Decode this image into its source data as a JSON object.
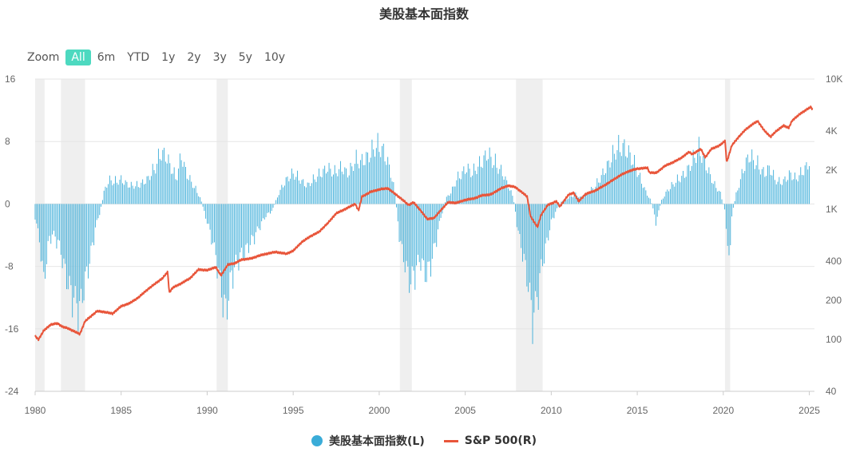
{
  "title": "美股基本面指数",
  "range_selector": {
    "label": "Zoom",
    "buttons": [
      "All",
      "6m",
      "YTD",
      "1y",
      "2y",
      "3y",
      "5y",
      "10y"
    ],
    "active": "All"
  },
  "colors": {
    "bars": "#3aacd8",
    "line": "#e8553a",
    "recession": "#efefef",
    "grid": "#e6e6e6",
    "active_button": "#4dd9c0"
  },
  "chart_data": {
    "type": "bar",
    "title": "美股基本面指数",
    "x_axis": {
      "type": "datetime",
      "range": [
        1980.0,
        2025.3
      ],
      "tick_labels": [
        "1980",
        "1985",
        "1990",
        "1995",
        "2000",
        "2005",
        "2010",
        "2015",
        "2020",
        "2025"
      ]
    },
    "y_left": {
      "range": [
        -24,
        16
      ],
      "tick_labels": [
        "-24",
        "-16",
        "-8",
        "0",
        "8",
        "16"
      ],
      "grid": true
    },
    "y_right": {
      "scale": "log",
      "range": [
        40,
        10000
      ],
      "tick_values": [
        40,
        100,
        200,
        400,
        1000,
        2000,
        4000,
        10000
      ],
      "tick_labels": [
        "40",
        "100",
        "200",
        "400",
        "1K",
        "2K",
        "4K",
        "10K"
      ]
    },
    "recessions": [
      [
        1980.0,
        1980.55
      ],
      [
        1981.5,
        1982.9
      ],
      [
        1990.55,
        1991.2
      ],
      [
        2001.2,
        2001.9
      ],
      [
        2007.95,
        2009.5
      ],
      [
        2020.1,
        2020.4
      ]
    ],
    "series": [
      {
        "name": "美股基本面指数(L)",
        "type": "bar",
        "points": [
          [
            1980.0,
            -2
          ],
          [
            1980.3,
            -7
          ],
          [
            1980.5,
            -13
          ],
          [
            1980.8,
            -6
          ],
          [
            1981.0,
            -5
          ],
          [
            1981.3,
            -6
          ],
          [
            1981.5,
            -8
          ],
          [
            1981.8,
            -12
          ],
          [
            1982.0,
            -14
          ],
          [
            1982.3,
            -16
          ],
          [
            1982.6,
            -17.5
          ],
          [
            1982.9,
            -13
          ],
          [
            1983.2,
            -9
          ],
          [
            1983.5,
            -4
          ],
          [
            1983.8,
            -1
          ],
          [
            1984.0,
            2
          ],
          [
            1984.3,
            4
          ],
          [
            1984.6,
            3.5
          ],
          [
            1985.0,
            4
          ],
          [
            1985.5,
            3
          ],
          [
            1986.0,
            3
          ],
          [
            1986.5,
            4
          ],
          [
            1987.0,
            6
          ],
          [
            1987.3,
            8.5
          ],
          [
            1987.6,
            8
          ],
          [
            1987.9,
            6
          ],
          [
            1988.2,
            4
          ],
          [
            1988.5,
            8
          ],
          [
            1988.8,
            5
          ],
          [
            1989.2,
            3
          ],
          [
            1989.6,
            1
          ],
          [
            1990.0,
            -3
          ],
          [
            1990.3,
            -6
          ],
          [
            1990.6,
            -10
          ],
          [
            1990.9,
            -16
          ],
          [
            1991.1,
            -18
          ],
          [
            1991.4,
            -12
          ],
          [
            1991.8,
            -9
          ],
          [
            1992.2,
            -8
          ],
          [
            1992.6,
            -6
          ],
          [
            1993.0,
            -4
          ],
          [
            1993.4,
            -2
          ],
          [
            1993.8,
            -1
          ],
          [
            1994.2,
            2
          ],
          [
            1994.6,
            4
          ],
          [
            1995.0,
            5
          ],
          [
            1995.4,
            4
          ],
          [
            1995.8,
            3
          ],
          [
            1996.2,
            4
          ],
          [
            1996.6,
            5
          ],
          [
            1997.0,
            6
          ],
          [
            1997.4,
            5
          ],
          [
            1997.8,
            6
          ],
          [
            1998.2,
            5
          ],
          [
            1998.6,
            7
          ],
          [
            1999.0,
            7
          ],
          [
            1999.4,
            8
          ],
          [
            1999.8,
            9.5
          ],
          [
            2000.2,
            9
          ],
          [
            2000.6,
            6
          ],
          [
            2000.9,
            2
          ],
          [
            2001.2,
            -6
          ],
          [
            2001.5,
            -10
          ],
          [
            2001.8,
            -13
          ],
          [
            2002.1,
            -11
          ],
          [
            2002.4,
            -9
          ],
          [
            2002.7,
            -12
          ],
          [
            2003.0,
            -10
          ],
          [
            2003.3,
            -6
          ],
          [
            2003.6,
            -2
          ],
          [
            2003.9,
            1
          ],
          [
            2004.2,
            2
          ],
          [
            2004.5,
            4
          ],
          [
            2004.8,
            5
          ],
          [
            2005.1,
            6
          ],
          [
            2005.4,
            5
          ],
          [
            2005.7,
            6
          ],
          [
            2006.0,
            7
          ],
          [
            2006.3,
            8.5
          ],
          [
            2006.6,
            7
          ],
          [
            2006.9,
            6
          ],
          [
            2007.2,
            5
          ],
          [
            2007.5,
            3
          ],
          [
            2007.8,
            1
          ],
          [
            2008.1,
            -5
          ],
          [
            2008.4,
            -9
          ],
          [
            2008.7,
            -14
          ],
          [
            2008.9,
            -19
          ],
          [
            2009.1,
            -17
          ],
          [
            2009.4,
            -11
          ],
          [
            2009.7,
            -7
          ],
          [
            2010.0,
            -3
          ],
          [
            2010.3,
            -1
          ],
          [
            2010.6,
            0.5
          ],
          [
            2011.0,
            1
          ],
          [
            2011.4,
            1.5
          ],
          [
            2011.8,
            1
          ],
          [
            2012.2,
            2
          ],
          [
            2012.6,
            3
          ],
          [
            2013.0,
            5
          ],
          [
            2013.4,
            7
          ],
          [
            2013.8,
            9
          ],
          [
            2014.2,
            9.5
          ],
          [
            2014.6,
            8
          ],
          [
            2014.9,
            6
          ],
          [
            2015.2,
            4
          ],
          [
            2015.5,
            2
          ],
          [
            2015.8,
            0.5
          ],
          [
            2016.1,
            -3
          ],
          [
            2016.4,
            0.5
          ],
          [
            2016.7,
            2
          ],
          [
            2017.0,
            3
          ],
          [
            2017.4,
            4
          ],
          [
            2017.8,
            5
          ],
          [
            2018.2,
            7
          ],
          [
            2018.6,
            9
          ],
          [
            2018.9,
            7
          ],
          [
            2019.2,
            5
          ],
          [
            2019.5,
            3
          ],
          [
            2019.8,
            2
          ],
          [
            2020.1,
            -1
          ],
          [
            2020.2,
            -5
          ],
          [
            2020.3,
            -11
          ],
          [
            2020.5,
            -2
          ],
          [
            2020.7,
            1
          ],
          [
            2020.9,
            3
          ],
          [
            2021.2,
            6
          ],
          [
            2021.5,
            8
          ],
          [
            2021.8,
            7
          ],
          [
            2022.1,
            6
          ],
          [
            2022.4,
            5
          ],
          [
            2022.7,
            6
          ],
          [
            2023.0,
            4
          ],
          [
            2023.3,
            3.5
          ],
          [
            2023.6,
            4
          ],
          [
            2023.9,
            5
          ],
          [
            2024.2,
            4
          ],
          [
            2024.5,
            5
          ],
          [
            2024.8,
            6
          ],
          [
            2025.0,
            7
          ]
        ]
      },
      {
        "name": "S&P 500(R)",
        "type": "line",
        "points": [
          [
            1980.0,
            106
          ],
          [
            1980.2,
            100
          ],
          [
            1980.5,
            117
          ],
          [
            1980.9,
            130
          ],
          [
            1981.3,
            133
          ],
          [
            1981.6,
            125
          ],
          [
            1981.9,
            122
          ],
          [
            1982.3,
            115
          ],
          [
            1982.6,
            110
          ],
          [
            1982.9,
            138
          ],
          [
            1983.3,
            153
          ],
          [
            1983.6,
            165
          ],
          [
            1984.0,
            163
          ],
          [
            1984.5,
            158
          ],
          [
            1985.0,
            180
          ],
          [
            1985.5,
            190
          ],
          [
            1986.0,
            210
          ],
          [
            1986.5,
            240
          ],
          [
            1987.0,
            270
          ],
          [
            1987.4,
            295
          ],
          [
            1987.7,
            330
          ],
          [
            1987.8,
            230
          ],
          [
            1988.0,
            250
          ],
          [
            1988.5,
            270
          ],
          [
            1989.0,
            295
          ],
          [
            1989.5,
            345
          ],
          [
            1990.0,
            340
          ],
          [
            1990.5,
            360
          ],
          [
            1990.8,
            310
          ],
          [
            1991.2,
            375
          ],
          [
            1991.6,
            385
          ],
          [
            1992.0,
            410
          ],
          [
            1992.6,
            420
          ],
          [
            1993.0,
            440
          ],
          [
            1993.6,
            460
          ],
          [
            1994.0,
            470
          ],
          [
            1994.6,
            455
          ],
          [
            1995.0,
            480
          ],
          [
            1995.5,
            560
          ],
          [
            1996.0,
            620
          ],
          [
            1996.5,
            670
          ],
          [
            1997.0,
            780
          ],
          [
            1997.5,
            930
          ],
          [
            1998.0,
            1000
          ],
          [
            1998.6,
            1100
          ],
          [
            1998.8,
            980
          ],
          [
            1999.0,
            1250
          ],
          [
            1999.5,
            1360
          ],
          [
            2000.0,
            1420
          ],
          [
            2000.5,
            1450
          ],
          [
            2000.9,
            1320
          ],
          [
            2001.3,
            1200
          ],
          [
            2001.7,
            1080
          ],
          [
            2002.0,
            1130
          ],
          [
            2002.4,
            980
          ],
          [
            2002.8,
            840
          ],
          [
            2003.2,
            860
          ],
          [
            2003.6,
            990
          ],
          [
            2004.0,
            1130
          ],
          [
            2004.5,
            1120
          ],
          [
            2005.0,
            1180
          ],
          [
            2005.5,
            1210
          ],
          [
            2006.0,
            1280
          ],
          [
            2006.5,
            1300
          ],
          [
            2007.0,
            1430
          ],
          [
            2007.5,
            1520
          ],
          [
            2007.9,
            1480
          ],
          [
            2008.3,
            1350
          ],
          [
            2008.6,
            1250
          ],
          [
            2008.8,
            880
          ],
          [
            2009.2,
            730
          ],
          [
            2009.4,
            900
          ],
          [
            2009.8,
            1080
          ],
          [
            2010.3,
            1150
          ],
          [
            2010.5,
            1050
          ],
          [
            2011.0,
            1290
          ],
          [
            2011.3,
            1340
          ],
          [
            2011.6,
            1150
          ],
          [
            2012.0,
            1310
          ],
          [
            2012.5,
            1380
          ],
          [
            2013.0,
            1500
          ],
          [
            2013.5,
            1650
          ],
          [
            2014.0,
            1820
          ],
          [
            2014.5,
            1960
          ],
          [
            2015.0,
            2050
          ],
          [
            2015.6,
            2080
          ],
          [
            2015.7,
            1920
          ],
          [
            2016.1,
            1900
          ],
          [
            2016.6,
            2150
          ],
          [
            2017.0,
            2270
          ],
          [
            2017.5,
            2450
          ],
          [
            2018.0,
            2750
          ],
          [
            2018.2,
            2650
          ],
          [
            2018.7,
            2900
          ],
          [
            2018.95,
            2500
          ],
          [
            2019.3,
            2900
          ],
          [
            2019.8,
            3100
          ],
          [
            2020.1,
            3350
          ],
          [
            2020.2,
            2300
          ],
          [
            2020.5,
            3100
          ],
          [
            2020.9,
            3600
          ],
          [
            2021.3,
            4100
          ],
          [
            2021.7,
            4500
          ],
          [
            2022.0,
            4750
          ],
          [
            2022.4,
            4000
          ],
          [
            2022.75,
            3600
          ],
          [
            2023.0,
            3900
          ],
          [
            2023.5,
            4400
          ],
          [
            2023.8,
            4200
          ],
          [
            2024.0,
            4800
          ],
          [
            2024.5,
            5450
          ],
          [
            2024.9,
            5900
          ],
          [
            2025.1,
            6100
          ],
          [
            2025.2,
            5800
          ]
        ]
      }
    ],
    "legend": {
      "position": "bottom-center",
      "entries": [
        "美股基本面指数(L)",
        "S&P 500(R)"
      ]
    }
  }
}
